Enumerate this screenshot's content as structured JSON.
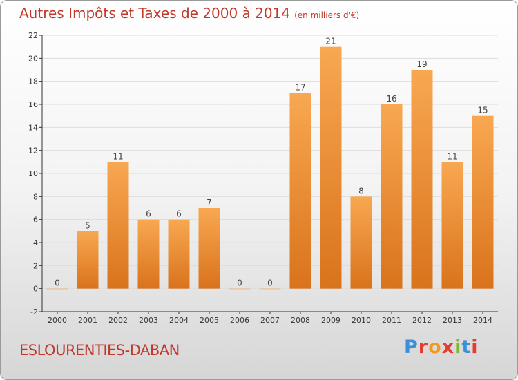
{
  "header": {
    "title": "Autres Impôts et Taxes de 2000 à 2014",
    "subtitle": "(en milliers d'€)"
  },
  "footer": {
    "commune": "ESLOURENTIES-DABAN",
    "brand": "Proxiti",
    "brand_colors": [
      "#3b8fd8",
      "#e63c2f",
      "#f29a1a",
      "#e63c2f",
      "#7ab82e",
      "#3b8fd8",
      "#e63c2f"
    ]
  },
  "colors": {
    "title": "#c0392b",
    "bar_light": "#f8a851",
    "bar_dark": "#d9731c",
    "axis": "#333333",
    "grid": "#dddddd"
  },
  "chart_data": {
    "type": "bar",
    "title": "Autres Impôts et Taxes de 2000 à 2014",
    "subtitle": "(en milliers d'€)",
    "categories": [
      "2000",
      "2001",
      "2002",
      "2003",
      "2004",
      "2005",
      "2006",
      "2007",
      "2008",
      "2009",
      "2010",
      "2011",
      "2012",
      "2013",
      "2014"
    ],
    "values": [
      0,
      5,
      11,
      6,
      6,
      7,
      0,
      0,
      17,
      21,
      8,
      16,
      19,
      11,
      15
    ],
    "ylim": [
      -2,
      22
    ],
    "yticks": [
      -2,
      0,
      2,
      4,
      6,
      8,
      10,
      12,
      14,
      16,
      18,
      20,
      22
    ],
    "xlabel": "",
    "ylabel": "",
    "grid": true,
    "data_labels": true
  }
}
